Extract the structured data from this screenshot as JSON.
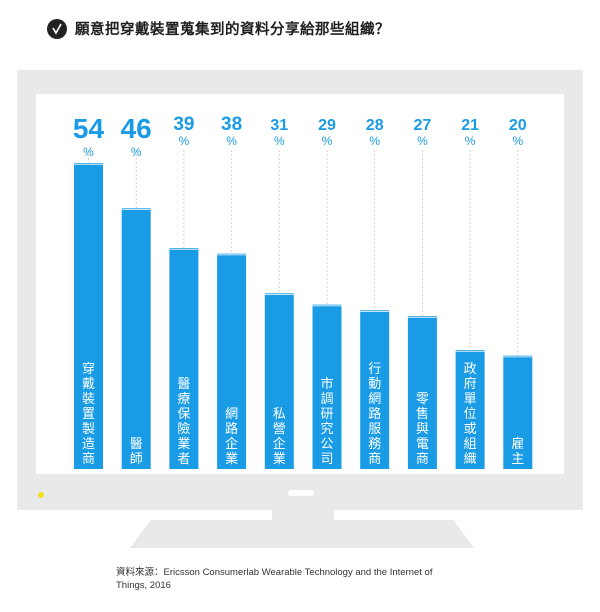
{
  "header": {
    "title": "願意把穿戴裝置蒐集到的資料分享給那些組織？",
    "icon": "check-icon"
  },
  "chart_data": {
    "type": "bar",
    "title": "願意把穿戴裝置蒐集到的資料分享給那些組織？",
    "categories": [
      "穿戴裝置製造商",
      "醫師",
      "醫療保險業者",
      "網路企業",
      "私營企業",
      "市調研究公司",
      "行動網路服務商",
      "零售與電商",
      "政府單位或組織",
      "雇主"
    ],
    "values": [
      54,
      46,
      39,
      38,
      31,
      29,
      28,
      27,
      21,
      20
    ],
    "unit": "%",
    "ylim": [
      0,
      54
    ],
    "grid": false,
    "bar_color": "#1a9be6",
    "label_color": "#1a9be6"
  },
  "source": {
    "text": "資料來源：Ericsson Consumerlab Wearable Technology and the Internet of Things, 2016"
  }
}
